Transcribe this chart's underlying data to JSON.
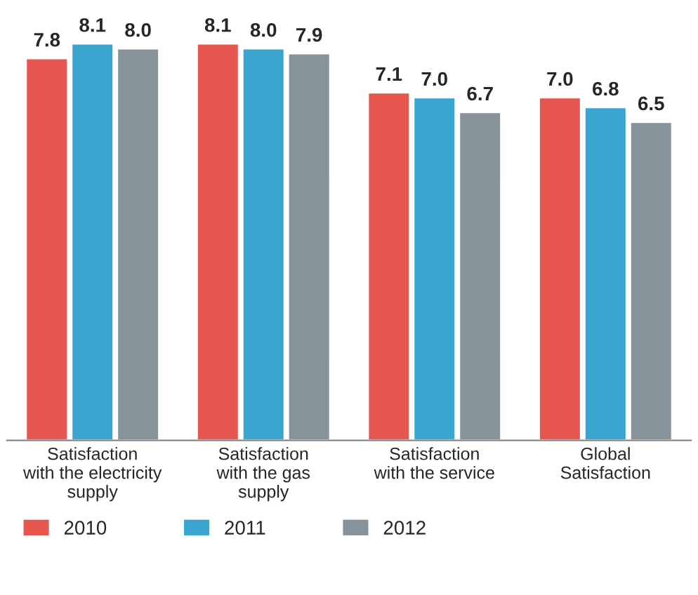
{
  "chart_data": {
    "type": "bar",
    "categories": [
      "Satisfaction\nwith the electricity\nsupply",
      "Satisfaction\nwith the gas\nsupply",
      "Satisfaction\nwith the service",
      "Global\nSatisfaction"
    ],
    "series": [
      {
        "name": "2010",
        "color": "#e8574f",
        "values": [
          7.8,
          8.1,
          7.1,
          7.0
        ],
        "value_labels": [
          "7.8",
          "8.1",
          "7.1",
          "7.0"
        ]
      },
      {
        "name": "2011",
        "color": "#3aa6d0",
        "values": [
          8.1,
          8.0,
          7.0,
          6.8
        ],
        "value_labels": [
          "8.1",
          "8.0",
          "7.0",
          "6.8"
        ]
      },
      {
        "name": "2012",
        "color": "#87939b",
        "values": [
          8.0,
          7.9,
          6.7,
          6.5
        ],
        "value_labels": [
          "8.0",
          "7.9",
          "6.7",
          "6.5"
        ]
      }
    ],
    "legend": "bottom left",
    "grid": false,
    "tick_labels": "x"
  }
}
